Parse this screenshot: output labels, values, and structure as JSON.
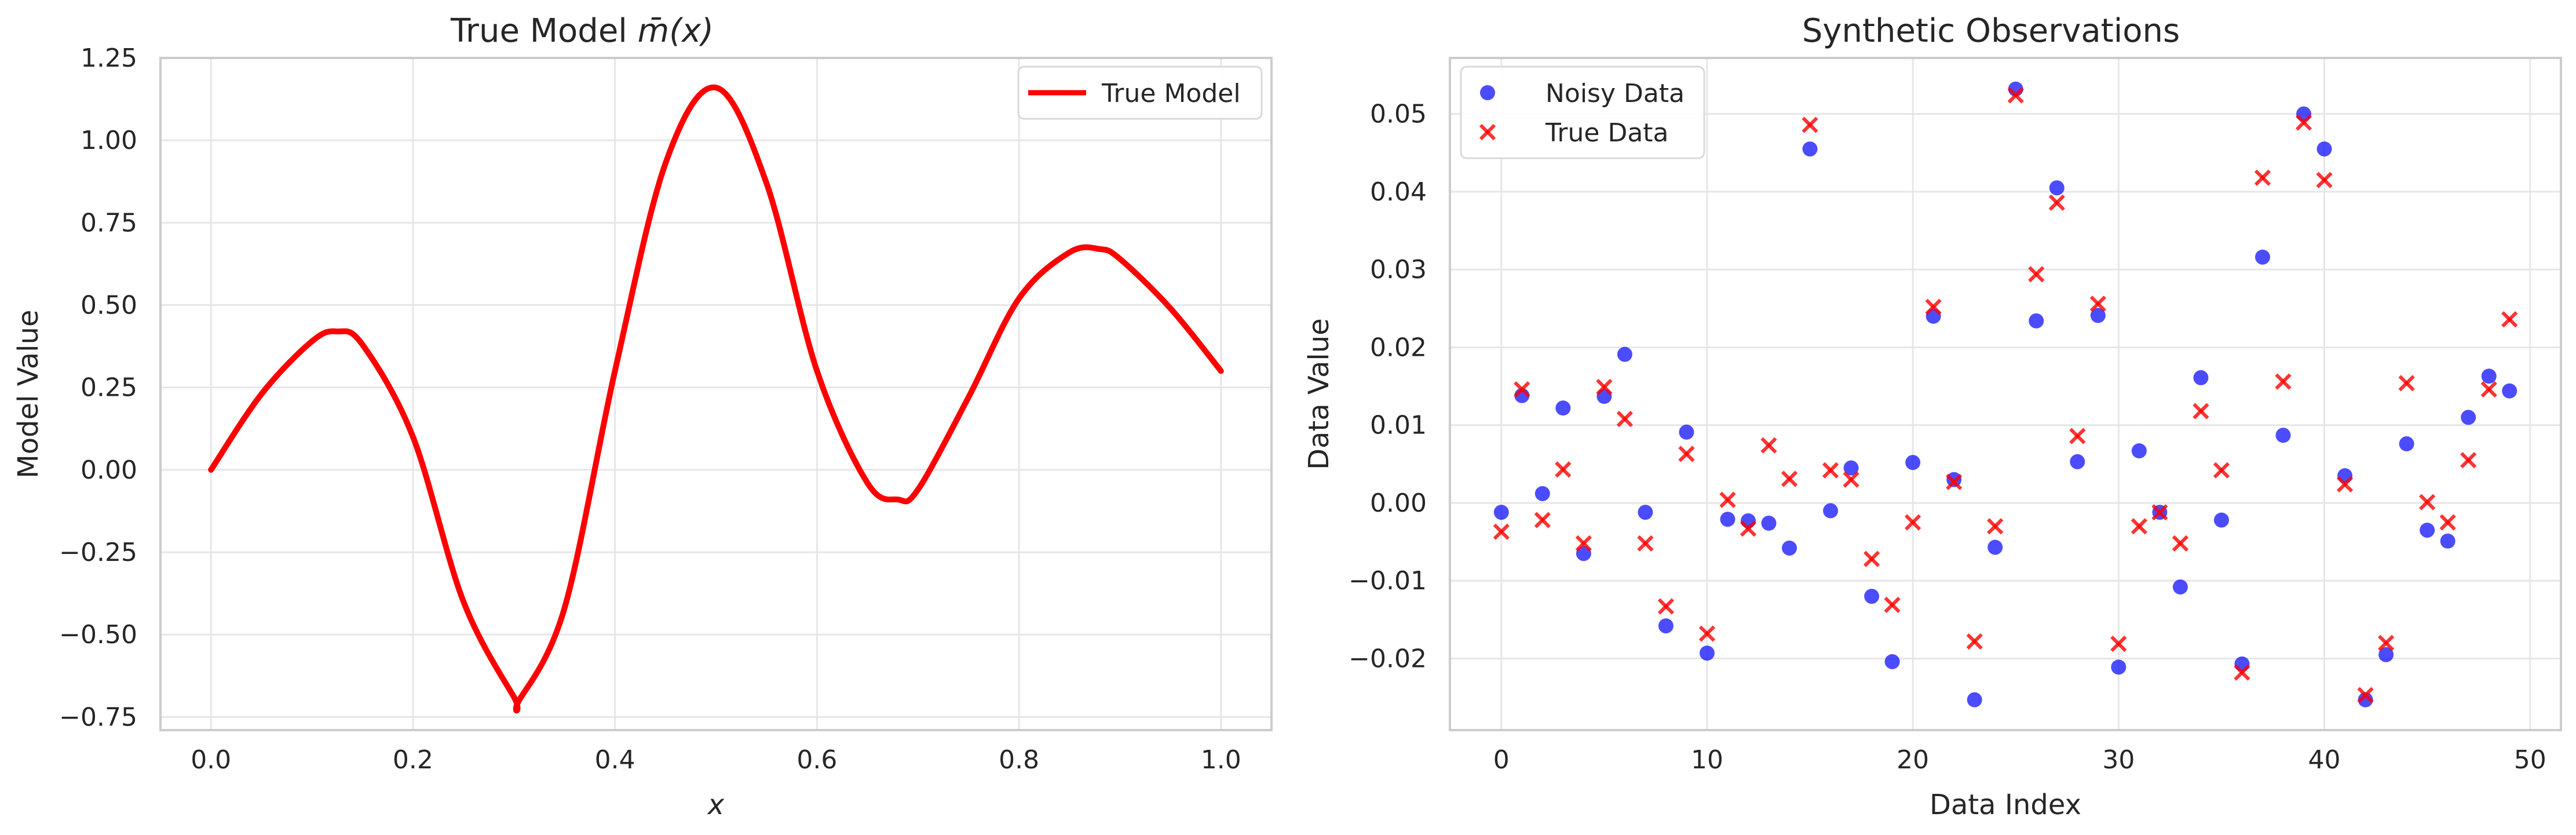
{
  "chart_data": [
    {
      "type": "line",
      "title": "True Model m̄(x)",
      "title_plain": "True Model ",
      "title_math": "m̄(x)",
      "xlabel": "x",
      "ylabel": "Model Value",
      "xlim": [
        -0.05,
        1.05
      ],
      "ylim": [
        -0.79,
        1.25
      ],
      "xticks": [
        0.0,
        0.2,
        0.4,
        0.6,
        0.8,
        1.0
      ],
      "xtick_labels": [
        "0.0",
        "0.2",
        "0.4",
        "0.6",
        "0.8",
        "1.0"
      ],
      "yticks": [
        -0.75,
        -0.5,
        -0.25,
        0.0,
        0.25,
        0.5,
        0.75,
        1.0,
        1.25
      ],
      "ytick_labels": [
        "−0.75",
        "−0.50",
        "−0.25",
        "0.00",
        "0.25",
        "0.50",
        "0.75",
        "1.00",
        "1.25"
      ],
      "grid": true,
      "legend_position": "top-right",
      "series": [
        {
          "name": "True Model",
          "color": "#ff0000",
          "x": [
            0.0,
            0.05,
            0.1,
            0.125,
            0.15,
            0.2,
            0.25,
            0.3,
            0.305,
            0.35,
            0.4,
            0.45,
            0.5,
            0.55,
            0.6,
            0.65,
            0.68,
            0.7,
            0.75,
            0.8,
            0.85,
            0.88,
            0.9,
            0.95,
            1.0
          ],
          "y": [
            0.0,
            0.23,
            0.39,
            0.42,
            0.38,
            0.1,
            -0.4,
            -0.69,
            -0.7,
            -0.42,
            0.3,
            0.93,
            1.16,
            0.87,
            0.3,
            -0.04,
            -0.09,
            -0.06,
            0.22,
            0.52,
            0.66,
            0.67,
            0.64,
            0.49,
            0.3
          ]
        }
      ]
    },
    {
      "type": "scatter",
      "title": "Synthetic Observations",
      "xlabel": "Data Index",
      "ylabel": "Data Value",
      "xlim": [
        -2.5,
        51.5
      ],
      "ylim": [
        -0.0292,
        0.0572
      ],
      "xticks": [
        0,
        10,
        20,
        30,
        40,
        50
      ],
      "xtick_labels": [
        "0",
        "10",
        "20",
        "30",
        "40",
        "50"
      ],
      "yticks": [
        -0.02,
        -0.01,
        0.0,
        0.01,
        0.02,
        0.03,
        0.04,
        0.05
      ],
      "ytick_labels": [
        "−0.02",
        "−0.01",
        "0.00",
        "0.01",
        "0.02",
        "0.03",
        "0.04",
        "0.05"
      ],
      "grid": true,
      "legend_position": "top-left",
      "x": [
        0,
        1,
        2,
        3,
        4,
        5,
        6,
        7,
        8,
        9,
        10,
        11,
        12,
        13,
        14,
        15,
        16,
        17,
        18,
        19,
        20,
        21,
        22,
        23,
        24,
        25,
        26,
        27,
        28,
        29,
        30,
        31,
        32,
        33,
        34,
        35,
        36,
        37,
        38,
        39,
        40,
        41,
        42,
        43,
        44,
        45,
        46,
        47,
        48,
        49
      ],
      "series": [
        {
          "name": "Noisy Data",
          "marker": "circle",
          "color": "#0000ff",
          "values": [
            -0.0012,
            0.0138,
            0.0012,
            0.0122,
            -0.0065,
            0.0137,
            0.0191,
            -0.0012,
            -0.0158,
            0.0091,
            -0.0193,
            -0.0021,
            -0.0023,
            -0.0026,
            -0.0058,
            0.0455,
            -0.001,
            0.0045,
            -0.012,
            -0.0204,
            0.0052,
            0.024,
            0.003,
            -0.0253,
            -0.0057,
            0.0532,
            0.0234,
            0.0405,
            0.0053,
            0.0241,
            -0.0211,
            0.0067,
            -0.0012,
            -0.0108,
            0.0161,
            -0.0022,
            -0.0207,
            0.0316,
            0.0087,
            0.05,
            0.0455,
            0.0035,
            -0.0253,
            -0.0195,
            0.0076,
            -0.0035,
            -0.0049,
            0.011,
            0.0163,
            0.0144
          ]
        },
        {
          "name": "True Data",
          "marker": "x",
          "color": "#ff0000",
          "values": [
            -0.0037,
            0.0146,
            -0.0022,
            0.0043,
            -0.0052,
            0.0149,
            0.0108,
            -0.0052,
            -0.0133,
            0.0063,
            -0.0168,
            0.0004,
            -0.0033,
            0.0074,
            0.0031,
            0.0486,
            0.0042,
            0.003,
            -0.0072,
            -0.0131,
            -0.0025,
            0.0252,
            0.0027,
            -0.0178,
            -0.003,
            0.0524,
            0.0294,
            0.0386,
            0.0086,
            0.0256,
            -0.0181,
            -0.003,
            -0.0012,
            -0.0052,
            0.0118,
            0.0042,
            -0.0218,
            0.0418,
            0.0156,
            0.0489,
            0.0415,
            0.0024,
            -0.0247,
            -0.018,
            0.0154,
            0.0001,
            -0.0025,
            0.0055,
            0.0146,
            0.0236
          ]
        }
      ]
    }
  ]
}
